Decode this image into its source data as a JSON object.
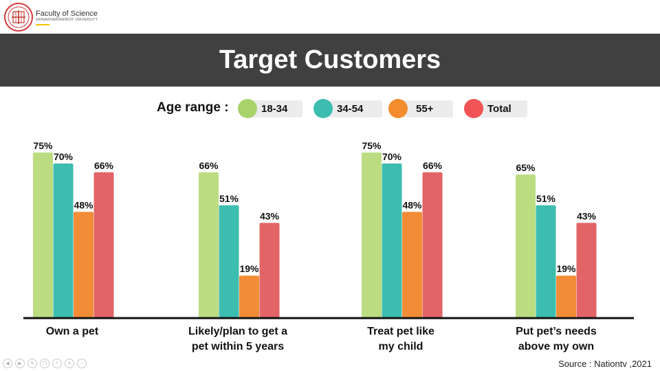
{
  "header": {
    "org_name": "Faculty of Science",
    "org_sub": "SRINAKHARINWIROT UNIVERSITY",
    "title": "Target Customers"
  },
  "legend": {
    "label": "Age range :",
    "items": [
      {
        "name": "18-34",
        "color": "#a8d26a"
      },
      {
        "name": "34-54",
        "color": "#3dbcb0"
      },
      {
        "name": "55+",
        "color": "#f28c2d"
      },
      {
        "name": "Total",
        "color": "#f05454"
      }
    ]
  },
  "chart_data": {
    "type": "bar",
    "categories": [
      "Own a pet",
      "Likely/plan to get a pet within 5 years",
      "Treat pet like my child",
      "Put pet’s needs above my own"
    ],
    "category_lines": [
      [
        "Own a pet"
      ],
      [
        "Likely/plan to get a",
        "pet within 5 years"
      ],
      [
        "Treat pet like",
        "my child"
      ],
      [
        "Put pet’s needs",
        "above my own"
      ]
    ],
    "series": [
      {
        "name": "18-34",
        "color": "#bcdc82",
        "values": [
          75,
          66,
          75,
          65
        ]
      },
      {
        "name": "34-54",
        "color": "#3dbcb0",
        "values": [
          70,
          51,
          70,
          51
        ]
      },
      {
        "name": "55+",
        "color": "#f28c36",
        "values": [
          48,
          19,
          48,
          19
        ]
      },
      {
        "name": "Total",
        "color": "#e26466",
        "values": [
          66,
          43,
          66,
          43
        ]
      }
    ],
    "value_suffix": "%",
    "ylim": [
      0,
      100
    ],
    "grid": false,
    "legend_position": "top",
    "title": "",
    "xlabel": "",
    "ylabel": ""
  },
  "footer": {
    "source": "Source : Nationtv ,2021",
    "nav_icons": [
      "prev-icon",
      "next-icon",
      "pen-icon",
      "copy-icon",
      "zoom-icon",
      "menu-icon",
      "more-icon"
    ]
  }
}
